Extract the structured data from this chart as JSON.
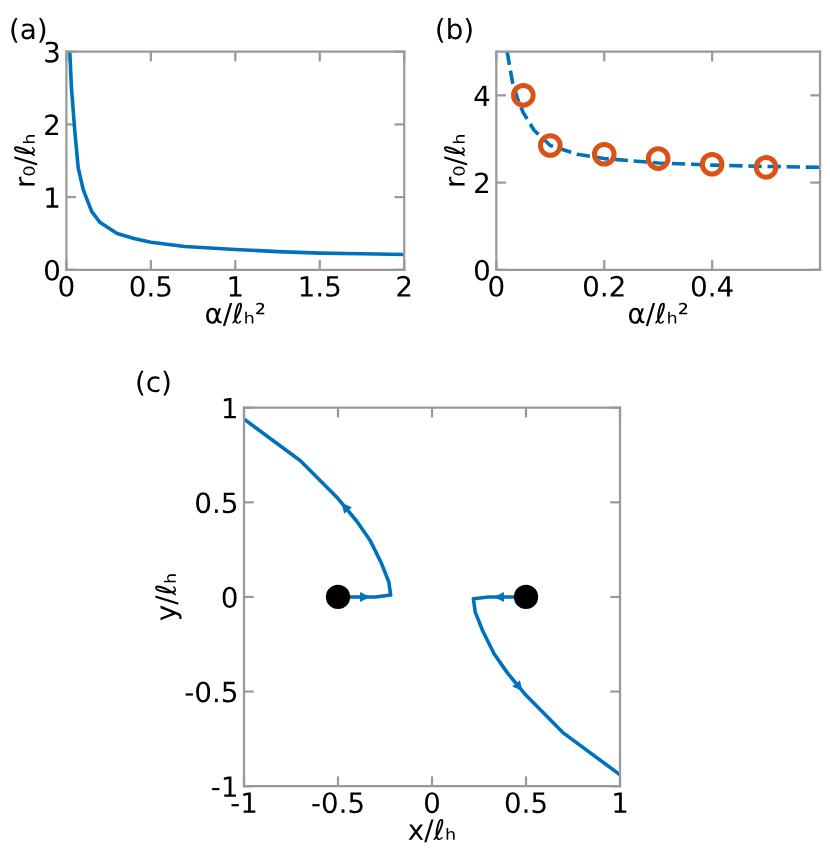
{
  "chart_data": [
    {
      "type": "line",
      "title": "(a)",
      "xlabel": "α/ℓₕ²",
      "ylabel": "r₀/ℓₕ",
      "xlim": [
        0,
        2
      ],
      "ylim": [
        0,
        3
      ],
      "xticks": [
        0,
        0.5,
        1,
        1.5,
        2
      ],
      "yticks": [
        0,
        1,
        2,
        3
      ],
      "grid": false,
      "marker": "none",
      "line_style": "solid",
      "series": [
        {
          "color": "#0072bd",
          "x": [
            0.02,
            0.03,
            0.05,
            0.07,
            0.1,
            0.15,
            0.2,
            0.3,
            0.4,
            0.5,
            0.7,
            1,
            1.25,
            1.5,
            1.75,
            2
          ],
          "values": [
            3,
            2.5,
            1.9,
            1.4,
            1.1,
            0.8,
            0.65,
            0.5,
            0.43,
            0.38,
            0.32,
            0.28,
            0.25,
            0.23,
            0.22,
            0.21
          ]
        }
      ]
    },
    {
      "type": "scatter",
      "title": "(b)",
      "xlabel": "α/ℓₕ²",
      "ylabel": "r₀/ℓₕ",
      "xlim": [
        0,
        0.6
      ],
      "ylim": [
        0,
        5
      ],
      "xticks": [
        0,
        0.2,
        0.4
      ],
      "yticks": [
        0,
        2,
        4
      ],
      "grid": false,
      "marker": "circle",
      "series": [
        {
          "type": "line",
          "line_style": "dashed",
          "marker": "none",
          "color": "#0072bd",
          "x": [
            0.02,
            0.03,
            0.04,
            0.05,
            0.07,
            0.1,
            0.15,
            0.2,
            0.3,
            0.4,
            0.5,
            0.6
          ],
          "values": [
            5,
            4.3,
            3.9,
            3.6,
            3.2,
            2.85,
            2.65,
            2.55,
            2.45,
            2.4,
            2.37,
            2.35
          ]
        },
        {
          "type": "scatter",
          "color": "#d95319",
          "x": [
            0.05,
            0.1,
            0.2,
            0.3,
            0.4,
            0.5
          ],
          "values": [
            4.0,
            2.85,
            2.65,
            2.55,
            2.42,
            2.35
          ]
        }
      ]
    },
    {
      "type": "line",
      "title": "(c)",
      "xlabel": "x/ℓₕ",
      "ylabel": "y/ℓₕ",
      "xlim": [
        -1,
        1
      ],
      "ylim": [
        -1,
        1
      ],
      "xticks": [
        -1,
        -0.5,
        0,
        0.5,
        1
      ],
      "yticks": [
        -1,
        -0.5,
        0,
        0.5,
        1
      ],
      "grid": false,
      "marker": "none",
      "line_style": "solid",
      "series": [
        {
          "color": "#0072bd",
          "x": [
            -0.5,
            -0.3,
            -0.22,
            -0.23,
            -0.27,
            -0.33,
            -0.4,
            -0.5,
            -0.7,
            -1
          ],
          "values": [
            0,
            0,
            0.01,
            0.08,
            0.18,
            0.3,
            0.4,
            0.52,
            0.72,
            0.94
          ]
        },
        {
          "color": "#0072bd",
          "x": [
            0.5,
            0.3,
            0.22,
            0.23,
            0.27,
            0.33,
            0.4,
            0.5,
            0.7,
            1
          ],
          "values": [
            0,
            0,
            -0.01,
            -0.08,
            -0.18,
            -0.3,
            -0.4,
            -0.52,
            -0.72,
            -0.94
          ]
        },
        {
          "type": "scatter",
          "marker": "circle",
          "color": "#000000",
          "x": [
            -0.5,
            0.5
          ],
          "values": [
            0,
            0
          ]
        }
      ]
    }
  ]
}
